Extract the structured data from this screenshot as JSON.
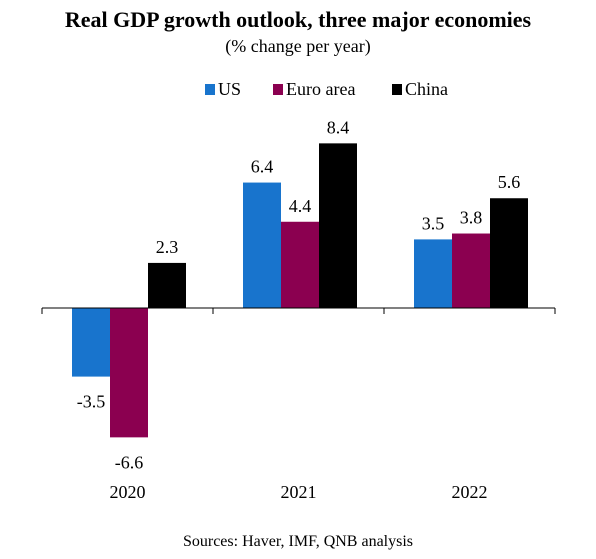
{
  "chart_data": {
    "type": "bar",
    "title": "Real GDP growth outlook, three major economies",
    "subtitle": "(% change per year)",
    "categories": [
      "2020",
      "2021",
      "2022"
    ],
    "series": [
      {
        "name": "US",
        "values": [
          -3.5,
          6.4,
          3.5
        ],
        "color": "#1874cd"
      },
      {
        "name": "Euro area",
        "values": [
          -6.6,
          4.4,
          3.8
        ],
        "color": "#8b0050"
      },
      {
        "name": "China",
        "values": [
          2.3,
          8.4,
          5.6
        ],
        "color": "#000000"
      }
    ],
    "legend_position": "top-center",
    "grid": false,
    "source": "Sources: Haver, IMF, QNB analysis"
  }
}
